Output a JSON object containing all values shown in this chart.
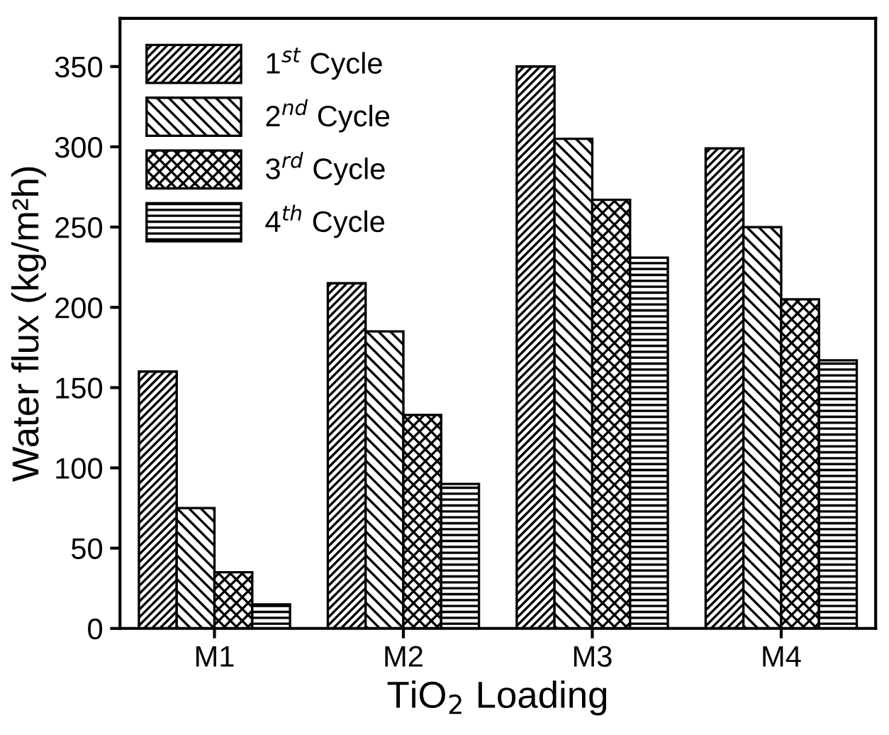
{
  "chart_data": {
    "type": "bar",
    "xlabel": "TiO$_{2}$ Loading",
    "ylabel": "Water flux (kg/m²h)",
    "categories": [
      "M1",
      "M2",
      "M3",
      "M4"
    ],
    "series": [
      {
        "name": "1$^{st}$ Cycle",
        "color": "#000000",
        "values": [
          160,
          215,
          350,
          299
        ]
      },
      {
        "name": "2$^{nd}$ Cycle",
        "color": "#000000",
        "values": [
          75,
          185,
          305,
          250
        ]
      },
      {
        "name": "3$^{rd}$ Cycle",
        "color": "#000000",
        "values": [
          35,
          133,
          267,
          205
        ]
      },
      {
        "name": "4$^{th}$ Cycle",
        "color": "#000000",
        "values": [
          15,
          90,
          231,
          167
        ]
      }
    ],
    "ylim": [
      0,
      380
    ],
    "yticks": [
      0,
      50,
      100,
      150,
      200,
      250,
      300,
      350
    ],
    "grid": false,
    "legend": "top left"
  }
}
